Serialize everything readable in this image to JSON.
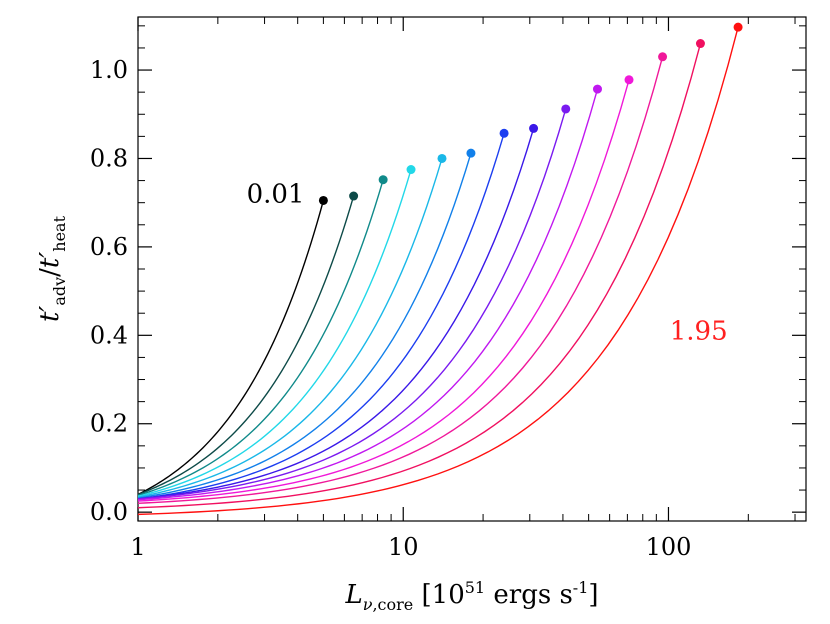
{
  "chart_data": {
    "type": "line",
    "title": "",
    "xlabel": "",
    "ylabel": "",
    "xscale": "log",
    "xlim": [
      1,
      330
    ],
    "ylim": [
      -0.02,
      1.12
    ],
    "grid": false,
    "x_ticks": [
      {
        "value": 1,
        "label": "1"
      },
      {
        "value": 10,
        "label": "10"
      },
      {
        "value": 100,
        "label": "100"
      }
    ],
    "y_ticks": [
      {
        "value": 0.0,
        "label": "0.0"
      },
      {
        "value": 0.2,
        "label": "0.2"
      },
      {
        "value": 0.4,
        "label": "0.4"
      },
      {
        "value": 0.6,
        "label": "0.6"
      },
      {
        "value": 0.8,
        "label": "0.8"
      },
      {
        "value": 1.0,
        "label": "1.0"
      }
    ],
    "annotations": [
      {
        "text": "0.01",
        "x": 3.3,
        "y": 0.7,
        "color": "#000000"
      },
      {
        "text": "1.95",
        "x": 130,
        "y": 0.39,
        "color": "#ff2020"
      }
    ],
    "series": [
      {
        "color": "#000000",
        "y0": 0.04,
        "endpoint": [
          5.0,
          0.705
        ]
      },
      {
        "color": "#0d4a48",
        "y0": 0.04,
        "endpoint": [
          6.5,
          0.715
        ]
      },
      {
        "color": "#108a8a",
        "y0": 0.038,
        "endpoint": [
          8.4,
          0.752
        ]
      },
      {
        "color": "#22d8e8",
        "y0": 0.036,
        "endpoint": [
          10.7,
          0.775
        ]
      },
      {
        "color": "#1ab8e8",
        "y0": 0.034,
        "endpoint": [
          14.0,
          0.8
        ]
      },
      {
        "color": "#1280ea",
        "y0": 0.032,
        "endpoint": [
          18.0,
          0.812
        ]
      },
      {
        "color": "#1c3ef0",
        "y0": 0.03,
        "endpoint": [
          24.0,
          0.857
        ]
      },
      {
        "color": "#3a18e8",
        "y0": 0.03,
        "endpoint": [
          31.0,
          0.868
        ]
      },
      {
        "color": "#7a1af0",
        "y0": 0.03,
        "endpoint": [
          41.0,
          0.912
        ]
      },
      {
        "color": "#c018f0",
        "y0": 0.028,
        "endpoint": [
          54.0,
          0.957
        ]
      },
      {
        "color": "#f018d8",
        "y0": 0.025,
        "endpoint": [
          71.0,
          0.978
        ]
      },
      {
        "color": "#f0189a",
        "y0": 0.02,
        "endpoint": [
          95.0,
          1.03
        ]
      },
      {
        "color": "#f01060",
        "y0": 0.01,
        "endpoint": [
          132.0,
          1.06
        ]
      },
      {
        "color": "#ff1010",
        "y0": -0.005,
        "endpoint": [
          183.0,
          1.097
        ]
      }
    ]
  }
}
